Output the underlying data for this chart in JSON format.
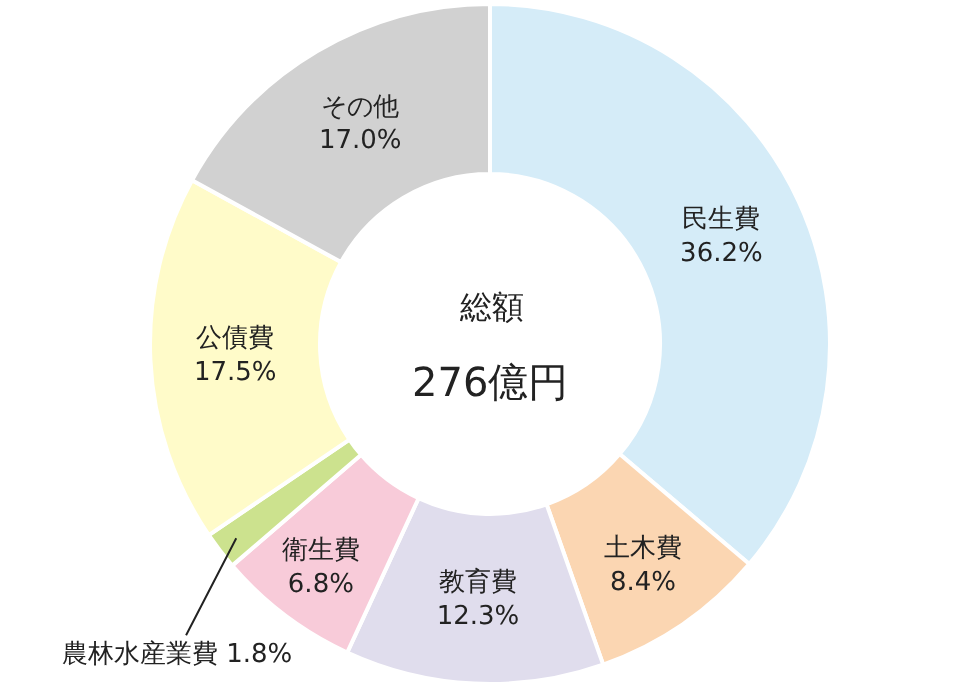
{
  "chart_data": {
    "type": "donut",
    "categories": [
      "民生費",
      "土木費",
      "教育費",
      "衛生費",
      "農林水産業費",
      "公債費",
      "その他"
    ],
    "values": [
      36.2,
      8.4,
      12.3,
      6.8,
      1.8,
      17.5,
      17.0
    ],
    "value_labels": [
      "36.2%",
      "8.4%",
      "12.3%",
      "6.8%",
      "1.8%",
      "17.5%",
      "17.0%"
    ],
    "colors": [
      "#d5ecf8",
      "#fbd6b2",
      "#e0dded",
      "#f8cbd9",
      "#cce28e",
      "#fffbc9",
      "#d1d1d1"
    ],
    "annotations": [
      "総額",
      "276億円"
    ],
    "legend": false
  }
}
